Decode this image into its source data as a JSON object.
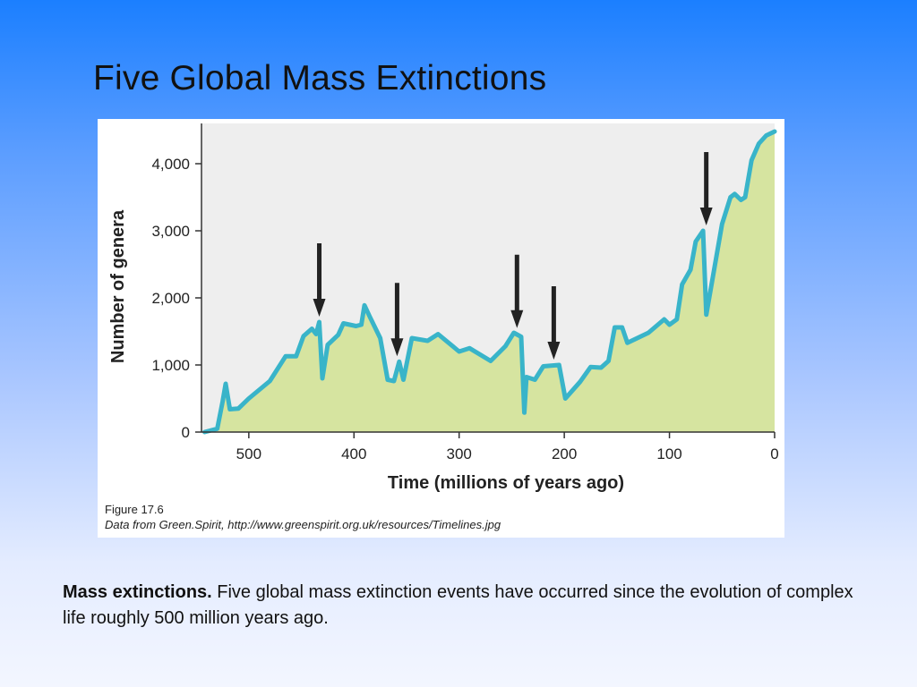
{
  "slide": {
    "title": "Five Global Mass Extinctions"
  },
  "figure": {
    "caption_title": "Figure 17.6",
    "caption_credit": "Data from Green.Spirit, http://www.greenspirit.org.uk/resources/Timelines.jpg"
  },
  "body": {
    "lead": "Mass extinctions.",
    "text": " Five global mass extinction events have occurred since the evolution of complex life roughly 500 million years ago."
  },
  "colors": {
    "fill": "#d6e4a0",
    "line": "#39b4c9",
    "arrow": "#222222",
    "plot_bg": "#eeeeee"
  },
  "chart_data": {
    "type": "area",
    "title": "",
    "xlabel": "Time (millions of years ago)",
    "ylabel": "Number of genera",
    "xlim": [
      545,
      0
    ],
    "ylim": [
      0,
      4600
    ],
    "x_reversed": true,
    "x_ticks": [
      500,
      400,
      300,
      200,
      100,
      0
    ],
    "x_tick_labels": [
      "500",
      "400",
      "300",
      "200",
      "100",
      "0"
    ],
    "y_ticks": [
      0,
      1000,
      2000,
      3000,
      4000
    ],
    "y_tick_labels": [
      "0",
      "1,000",
      "2,000",
      "3,000",
      "4,000"
    ],
    "grid": false,
    "series": [
      {
        "values": [
          [
            542,
            0
          ],
          [
            530,
            50
          ],
          [
            525,
            450
          ],
          [
            522,
            720
          ],
          [
            518,
            340
          ],
          [
            510,
            350
          ],
          [
            500,
            500
          ],
          [
            480,
            760
          ],
          [
            465,
            1130
          ],
          [
            455,
            1130
          ],
          [
            448,
            1430
          ],
          [
            440,
            1540
          ],
          [
            436,
            1460
          ],
          [
            433,
            1640
          ],
          [
            430,
            800
          ],
          [
            425,
            1300
          ],
          [
            415,
            1450
          ],
          [
            410,
            1620
          ],
          [
            398,
            1580
          ],
          [
            393,
            1600
          ],
          [
            390,
            1890
          ],
          [
            385,
            1720
          ],
          [
            375,
            1400
          ],
          [
            368,
            780
          ],
          [
            362,
            760
          ],
          [
            357,
            1050
          ],
          [
            353,
            780
          ],
          [
            345,
            1400
          ],
          [
            330,
            1360
          ],
          [
            320,
            1460
          ],
          [
            300,
            1200
          ],
          [
            290,
            1250
          ],
          [
            270,
            1060
          ],
          [
            256,
            1280
          ],
          [
            248,
            1480
          ],
          [
            241,
            1420
          ],
          [
            238,
            290
          ],
          [
            236,
            820
          ],
          [
            228,
            780
          ],
          [
            220,
            980
          ],
          [
            205,
            1000
          ],
          [
            199,
            500
          ],
          [
            185,
            750
          ],
          [
            175,
            970
          ],
          [
            165,
            960
          ],
          [
            158,
            1060
          ],
          [
            152,
            1560
          ],
          [
            145,
            1560
          ],
          [
            140,
            1330
          ],
          [
            120,
            1480
          ],
          [
            105,
            1680
          ],
          [
            100,
            1600
          ],
          [
            93,
            1680
          ],
          [
            88,
            2200
          ],
          [
            80,
            2420
          ],
          [
            75,
            2840
          ],
          [
            68,
            3000
          ],
          [
            65,
            1750
          ],
          [
            50,
            3100
          ],
          [
            42,
            3500
          ],
          [
            38,
            3550
          ],
          [
            32,
            3460
          ],
          [
            28,
            3500
          ],
          [
            22,
            4050
          ],
          [
            15,
            4300
          ],
          [
            8,
            4420
          ],
          [
            0,
            4480
          ]
        ]
      }
    ],
    "extinction_arrows": [
      {
        "x": 433,
        "y": 1640
      },
      {
        "x": 359,
        "y": 1050
      },
      {
        "x": 245,
        "y": 1470
      },
      {
        "x": 210,
        "y": 1000
      },
      {
        "x": 65,
        "y": 3000
      }
    ]
  }
}
